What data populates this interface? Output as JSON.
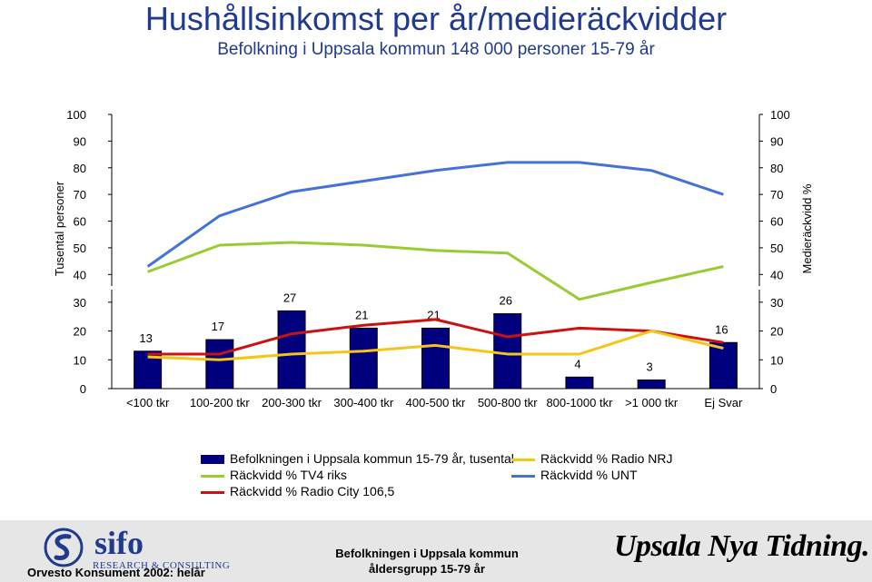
{
  "title": "Hushållsinkomst per år/medieräckvidder",
  "subtitle": "Befolkning i Uppsala kommun 148 000 personer 15-79 år",
  "chart_data": {
    "type": "bar",
    "categories": [
      "<100 tkr",
      "100-200 tkr",
      "200-300 tkr",
      "300-400 tkr",
      "400-500 tkr",
      "500-800 tkr",
      "800-1000 tkr",
      ">1 000 tkr",
      "Ej Svar"
    ],
    "ylabel_left": "Tusental personer",
    "ylabel_right": "Medieräckvidd %",
    "ylim": [
      0,
      100
    ],
    "yticks": [
      0,
      10,
      20,
      30,
      40,
      50,
      60,
      70,
      80,
      90,
      100
    ],
    "bars": {
      "name": "Befolkningen i Uppsala kommun 15-79 år, tusental",
      "color": "#00007f",
      "values": [
        13,
        17,
        27,
        21,
        21,
        26,
        4,
        3,
        16
      ]
    },
    "series": [
      {
        "name": "Räckvidd % TV4 riks",
        "color": "#99cc33",
        "values": [
          41,
          51,
          52,
          51,
          49,
          48,
          31,
          37,
          43
        ]
      },
      {
        "name": "Räckvidd % Radio City 106,5",
        "color": "#cc1111",
        "values": [
          12,
          12,
          19,
          22,
          24,
          18,
          21,
          20,
          16
        ]
      },
      {
        "name": "Räckvidd % Radio NRJ",
        "color": "#f5c518",
        "values": [
          11,
          10,
          12,
          13,
          15,
          12,
          12,
          20,
          14
        ]
      },
      {
        "name": "Räckvidd % UNT",
        "color": "#4472d8",
        "values": [
          43,
          62,
          71,
          75,
          79,
          82,
          82,
          79,
          70
        ]
      }
    ]
  },
  "footer": {
    "sifo_word": "sifo",
    "sifo_sub": "RESEARCH & CONSULTING",
    "left_text": "Orvesto Konsument 2002: helår",
    "mid_line1": "Befolkningen i Uppsala kommun",
    "mid_line2": "åldersgrupp 15-79 år",
    "logo_text": "Upsala Nya Tidning."
  }
}
